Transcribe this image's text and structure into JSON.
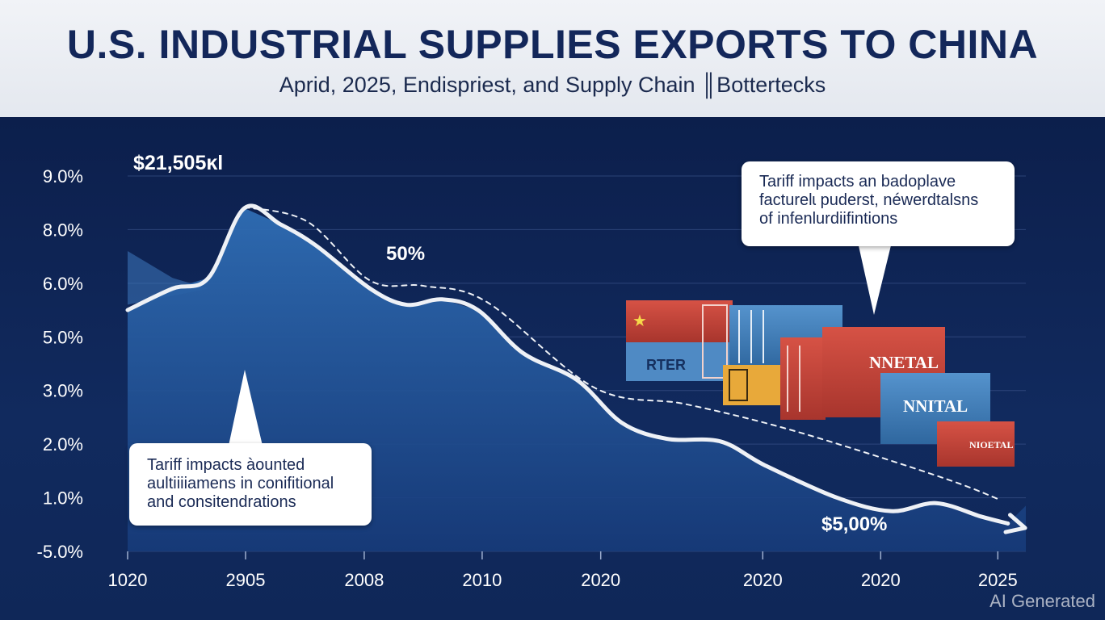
{
  "header": {
    "title": "U.S. INDUSTRIAL SUPPLIES EXPORTS TO CHINA",
    "subtitle": "Aprid, 2025, Endispriest, and Supply Chain ║Bottertecks"
  },
  "callouts": {
    "left": [
      "Tariff impacts àounted",
      "aultiiiiamens in conifitional",
      "and consitendrations"
    ],
    "right": [
      "Tariff impacts an badoplave",
      "facturelɩ puderst, néwerdtalsns",
      "of infenlurdiifintions"
    ]
  },
  "containers": [
    "RTER",
    "NNETAL",
    "NNITAL",
    "NIOETAL"
  ],
  "watermark": "AI Generated",
  "colors": {
    "header_bg": "#eef0f5",
    "title": "#13275a",
    "plot_bg": "#0f2352",
    "area_fill": "#2a63a8",
    "line": "#eef1f6",
    "container_red": "#c8443a",
    "container_blue": "#4a86c0",
    "container_yellow": "#e8a93a"
  },
  "chart_data": {
    "type": "line",
    "title": "U.S. INDUSTRIAL SUPPLIES EXPORTS TO CHINA",
    "subtitle": "Aprid, 2025, Endispriest, and Supply Chain ║Bottertecks",
    "y_tick_labels": [
      "9.0%",
      "8.0%",
      "6.0%",
      "5.0%",
      "3.0%",
      "2.0%",
      "1.0%",
      "-5.0%"
    ],
    "x_tick_labels": [
      "1020",
      "2905",
      "2008",
      "2010",
      "2020",
      "2020",
      "2020",
      "2025"
    ],
    "x_tick_fraction": [
      0.0,
      0.1313,
      0.2634,
      0.3947,
      0.5267,
      0.7071,
      0.8384,
      0.9688
    ],
    "y_scale_note": "tick labels are non-uniform; values below are in tick-index units (0 = \"-5.0%\" at bottom, 7 = \"9.0%\" at top)",
    "series": [
      {
        "style": "solid",
        "x": [
          0,
          0.05,
          0.09,
          0.13,
          0.17,
          0.21,
          0.27,
          0.31,
          0.35,
          0.39,
          0.44,
          0.5,
          0.55,
          0.6,
          0.66,
          0.71,
          0.79,
          0.85,
          0.9,
          0.95,
          0.98
        ],
        "y": [
          4.5,
          4.9,
          5.1,
          6.4,
          6.1,
          5.7,
          4.9,
          4.6,
          4.7,
          4.5,
          3.7,
          3.2,
          2.4,
          2.1,
          2.05,
          1.6,
          1.0,
          0.75,
          0.9,
          0.65,
          0.52
        ]
      },
      {
        "style": "dashed",
        "x": [
          0.13,
          0.2,
          0.27,
          0.33,
          0.4,
          0.52,
          0.62,
          0.72,
          0.82,
          0.92,
          0.97
        ],
        "y": [
          6.42,
          6.15,
          5.05,
          4.95,
          4.65,
          3.05,
          2.75,
          2.35,
          1.85,
          1.3,
          0.97
        ]
      }
    ],
    "annotations": [
      "$21,505ĸl",
      "50%",
      "$5,00%"
    ],
    "grid": true,
    "legend": "none"
  }
}
